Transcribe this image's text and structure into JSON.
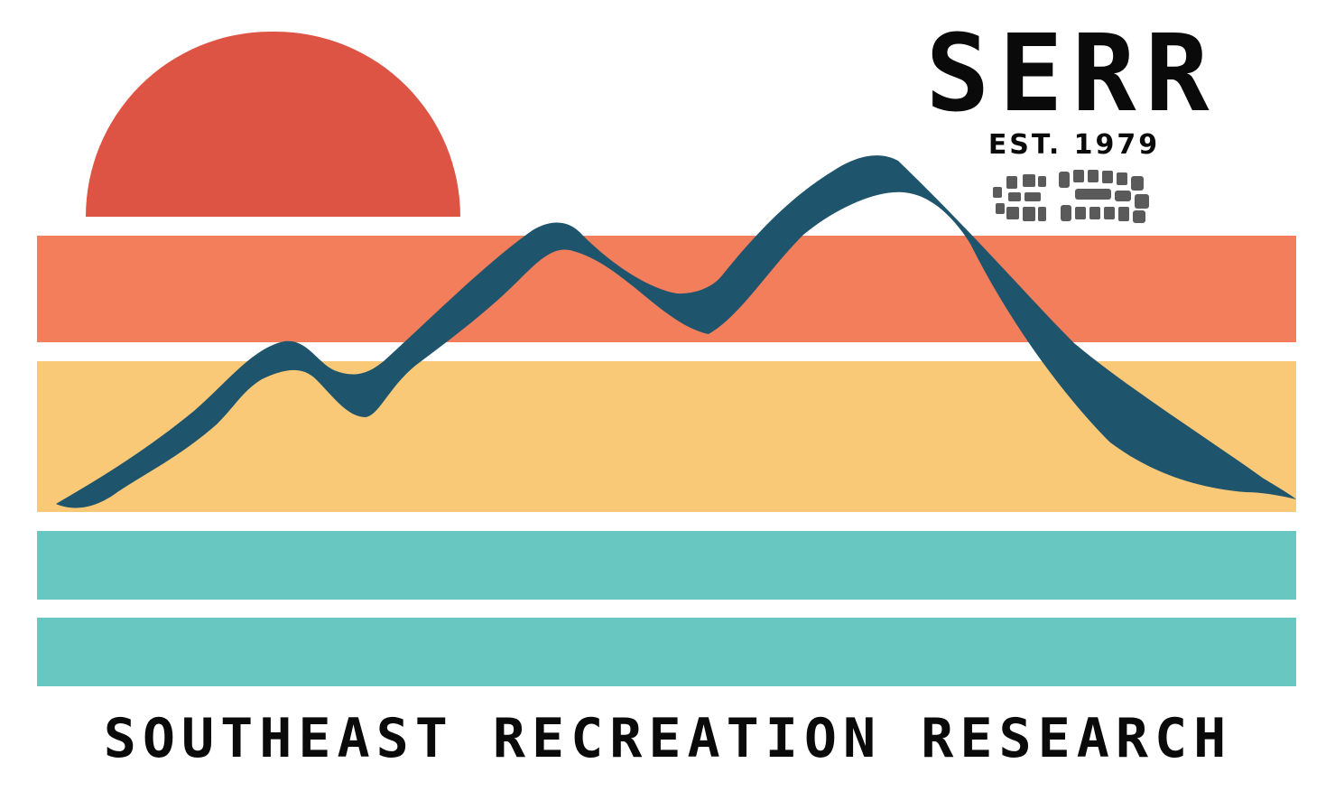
{
  "logo": {
    "acronym": "SERR",
    "established": "EST. 1979",
    "tagline": "SOUTHEAST RECREATION RESEARCH"
  },
  "colors": {
    "sun": "#de5444",
    "band_coral": "#f27e5b",
    "band_yellow": "#f9c978",
    "band_teal": "#69c7c2",
    "mountain_ridge": "#1f546d",
    "text": "#0a0a0a",
    "footprints": "#5a5a5a"
  },
  "icons": {
    "footprints": "boot-footprints-icon",
    "sun": "setting-sun-shape",
    "mountain": "mountain-ridge-shape"
  }
}
